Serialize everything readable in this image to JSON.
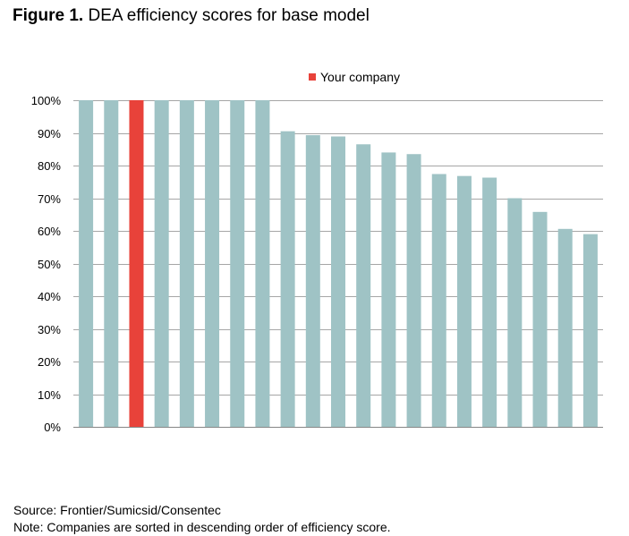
{
  "figure": {
    "label": "Figure 1.",
    "caption": "DEA efficiency scores for base model"
  },
  "colors": {
    "bar": "#9fc3c5",
    "highlight": "#e8423a",
    "grid": "#a6a6a6",
    "axis": "#868686"
  },
  "chart_data": {
    "type": "bar",
    "title": "DEA efficiency scores for base model",
    "xlabel": "",
    "ylabel": "",
    "ylim": [
      0,
      100
    ],
    "yticks": [
      0,
      10,
      20,
      30,
      40,
      50,
      60,
      70,
      80,
      90,
      100
    ],
    "ytick_labels": [
      "0%",
      "10%",
      "20%",
      "30%",
      "40%",
      "50%",
      "60%",
      "70%",
      "80%",
      "90%",
      "100%"
    ],
    "grid": true,
    "legend": {
      "position": "top-center",
      "entries": [
        "Your company"
      ]
    },
    "highlight_index": 2,
    "values": [
      100,
      100,
      100,
      100,
      100,
      100,
      100,
      100,
      90.5,
      89.3,
      88.9,
      86.5,
      84.0,
      83.5,
      77.4,
      76.8,
      76.3,
      70.0,
      65.8,
      60.6,
      59.0
    ]
  },
  "footer": {
    "source": "Source: Frontier/Sumicsid/Consentec",
    "note": "Note: Companies are sorted in descending order of efficiency score."
  }
}
